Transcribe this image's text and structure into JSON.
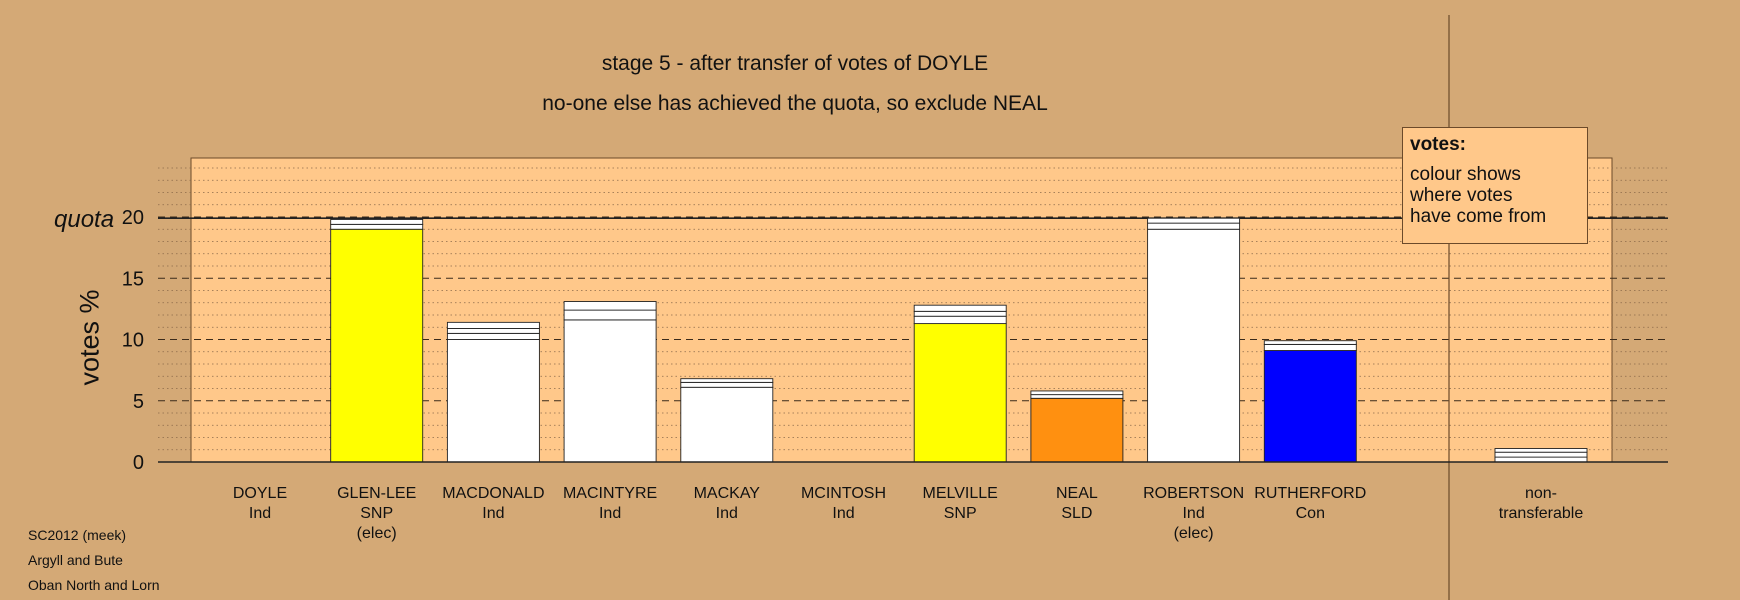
{
  "header": {
    "title": "stage 5 - after transfer of votes of DOYLE",
    "subtitle": "no-one else has achieved the quota, so exclude NEAL"
  },
  "footer": [
    "SC2012 (meek)",
    "Argyll and Bute",
    "Oban North and Lorn"
  ],
  "legend": {
    "title": "votes:",
    "lines": [
      "colour shows",
      "where votes",
      "have come from"
    ]
  },
  "chart_data": {
    "type": "bar",
    "ylabel": "votes %",
    "ylim": [
      0,
      25
    ],
    "yticks": [
      0,
      5,
      10,
      15,
      20
    ],
    "quota": 19.9,
    "quota_label": "quota",
    "colors": {
      "SNP": "#ffff00",
      "Ind": "#ffffff",
      "SLD": "#ff9010",
      "Con": "#0000ff",
      "nontransferable": "#ffffff"
    },
    "candidates": [
      {
        "name": "DOYLE",
        "party": "Ind",
        "elected": "",
        "color": "#ffffff",
        "segments": []
      },
      {
        "name": "GLEN-LEE",
        "party": "SNP",
        "elected": "(elec)",
        "color": "#ffff00",
        "segments": [
          19.0,
          0.4,
          0.4
        ]
      },
      {
        "name": "MACDONALD",
        "party": "Ind",
        "elected": "",
        "color": "#ffffff",
        "segments": [
          10.0,
          0.5,
          0.4,
          0.5
        ]
      },
      {
        "name": "MACINTYRE",
        "party": "Ind",
        "elected": "",
        "color": "#ffffff",
        "segments": [
          11.6,
          0.8,
          0.7
        ]
      },
      {
        "name": "MACKAY",
        "party": "Ind",
        "elected": "",
        "color": "#ffffff",
        "segments": [
          6.1,
          0.4,
          0.3
        ]
      },
      {
        "name": "MCINTOSH",
        "party": "Ind",
        "elected": "",
        "color": "#ffffff",
        "segments": []
      },
      {
        "name": "MELVILLE",
        "party": "SNP",
        "elected": "",
        "color": "#ffff00",
        "segments": [
          11.3,
          0.6,
          0.4,
          0.5
        ]
      },
      {
        "name": "NEAL",
        "party": "SLD",
        "elected": "",
        "color": "#ff9010",
        "segments": [
          5.2,
          0.3,
          0.3
        ]
      },
      {
        "name": "ROBERTSON",
        "party": "Ind",
        "elected": "(elec)",
        "color": "#ffffff",
        "segments": [
          19.0,
          0.5,
          0.4
        ]
      },
      {
        "name": "RUTHERFORD",
        "party": "Con",
        "elected": "",
        "color": "#0000ff",
        "segments": [
          9.1,
          0.5,
          0.3
        ]
      }
    ],
    "nontransferable": {
      "label_lines": [
        "non-",
        "transferable"
      ],
      "segments": [
        0.4,
        0.4,
        0.3
      ]
    }
  }
}
